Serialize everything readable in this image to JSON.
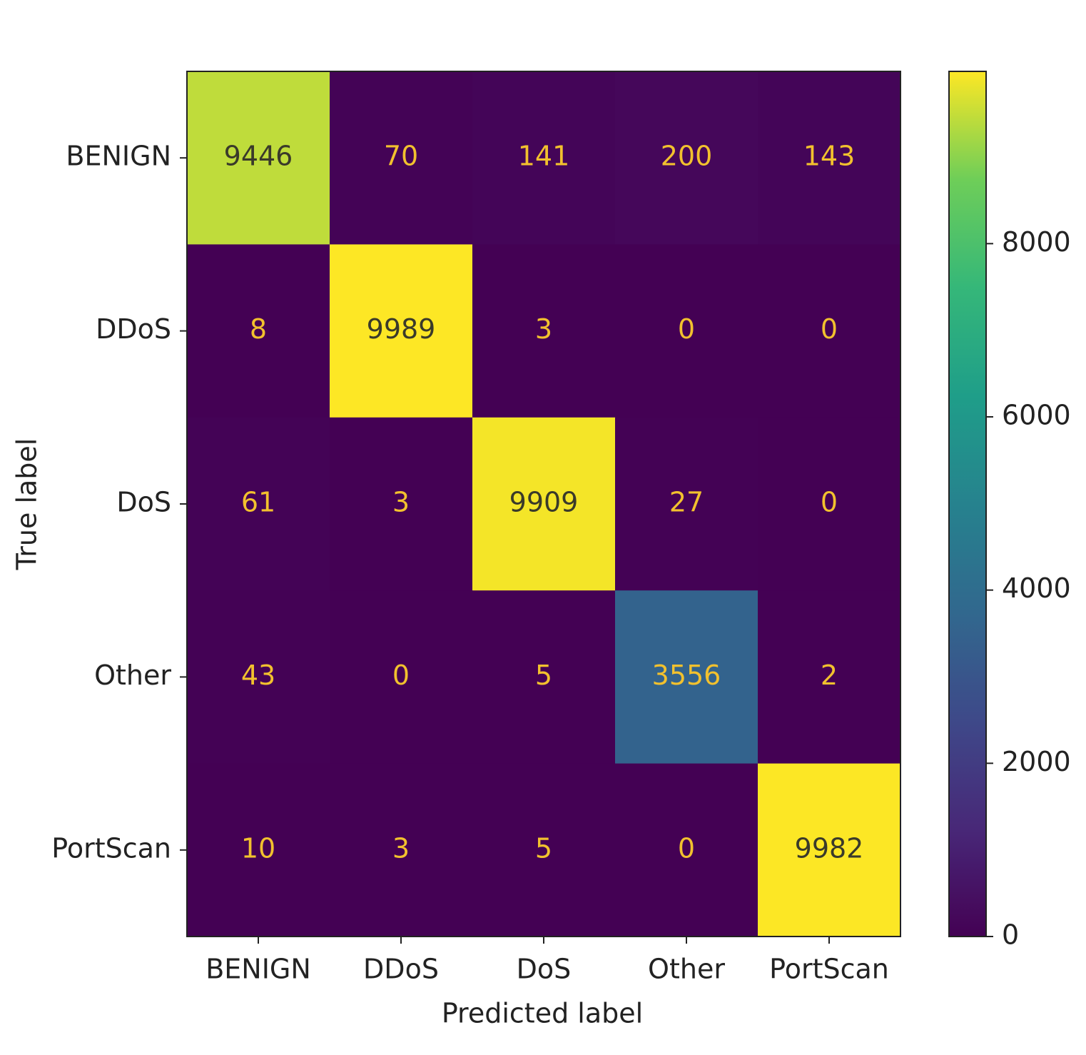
{
  "chart_data": {
    "type": "heatmap",
    "x_categories": [
      "BENIGN",
      "DDoS",
      "DoS",
      "Other",
      "PortScan"
    ],
    "y_categories": [
      "BENIGN",
      "DDoS",
      "DoS",
      "Other",
      "PortScan"
    ],
    "values": [
      [
        9446,
        70,
        141,
        200,
        143
      ],
      [
        8,
        9989,
        3,
        0,
        0
      ],
      [
        61,
        3,
        9909,
        27,
        0
      ],
      [
        43,
        0,
        5,
        3556,
        2
      ],
      [
        10,
        3,
        5,
        0,
        9982
      ]
    ],
    "xlabel": "Predicted label",
    "ylabel": "True label",
    "colormap": "viridis",
    "clim": [
      0,
      9989
    ],
    "cticks": [
      0,
      2000,
      4000,
      6000,
      8000
    ]
  }
}
